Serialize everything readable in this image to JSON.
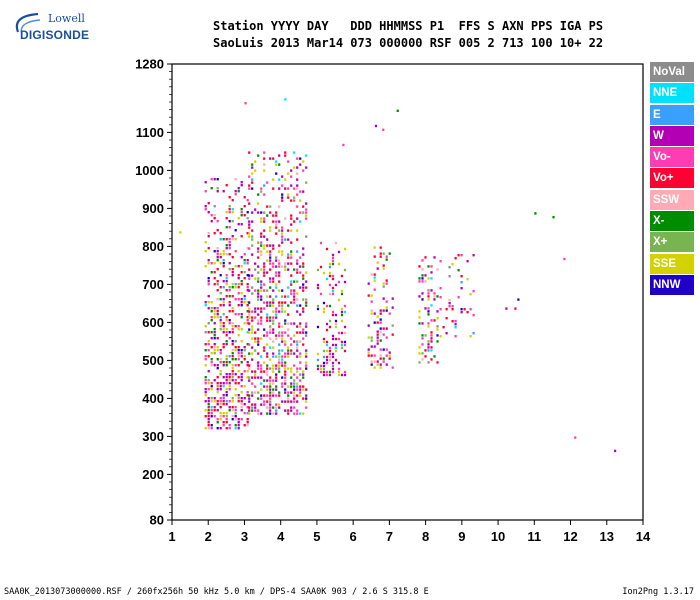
{
  "header": {
    "line1": "Station YYYY DAY   DDD HHMMSS P1  FFS S AXN PPS IGA PS",
    "line2": "SaoLuis 2013 Mar14 073 000000 RSF 005 2 713 100 10+ 22"
  },
  "logo": {
    "line1": "Lowell",
    "line2": "DIGISONDE"
  },
  "legend": [
    {
      "label": "NoVal",
      "color": "#8c8c8c",
      "text": "#ffffff"
    },
    {
      "label": "NNE",
      "color": "#00e1ff",
      "text": "#ffffff"
    },
    {
      "label": "E",
      "color": "#3aa0ff",
      "text": "#ffffff"
    },
    {
      "label": "W",
      "color": "#b400b4",
      "text": "#ffffff"
    },
    {
      "label": "Vo-",
      "color": "#ff3cb4",
      "text": "#ffffff"
    },
    {
      "label": "Vo+",
      "color": "#ff0032",
      "text": "#ffffff"
    },
    {
      "label": "SSW",
      "color": "#ffaab4",
      "text": "#ffffff"
    },
    {
      "label": "X-",
      "color": "#008c00",
      "text": "#ffffff"
    },
    {
      "label": "X+",
      "color": "#78b450",
      "text": "#ffffff"
    },
    {
      "label": "SSE",
      "color": "#d2d200",
      "text": "#ffffff"
    },
    {
      "label": "NNW",
      "color": "#1e00c8",
      "text": "#ffffff"
    }
  ],
  "footer": {
    "left": "SAA0K_2013073000000.RSF / 260fx256h 50 kHz 5.0 km / DPS-4 SAA0K 903 / 2.6 S 315.8 E",
    "right": "Ion2Png 1.3.17"
  },
  "chart_data": {
    "type": "scatter",
    "title": "",
    "xlabel": "",
    "ylabel": "",
    "xlim": [
      1,
      14
    ],
    "ylim": [
      80,
      1280
    ],
    "xticks": [
      1,
      2,
      3,
      4,
      5,
      6,
      7,
      8,
      9,
      10,
      11,
      12,
      13,
      14
    ],
    "yticks": [
      80,
      200,
      300,
      400,
      500,
      600,
      700,
      800,
      900,
      1000,
      1100,
      1280
    ],
    "clusters": [
      {
        "x": [
          1.9,
          3.1
        ],
        "y": [
          320,
          980
        ],
        "density": 0.55
      },
      {
        "x": [
          3.1,
          4.7
        ],
        "y": [
          360,
          1050
        ],
        "density": 0.55
      },
      {
        "x": [
          5.0,
          5.8
        ],
        "y": [
          460,
          820
        ],
        "density": 0.35
      },
      {
        "x": [
          6.4,
          7.1
        ],
        "y": [
          480,
          800
        ],
        "density": 0.35
      },
      {
        "x": [
          7.8,
          8.3
        ],
        "y": [
          490,
          790
        ],
        "density": 0.4
      },
      {
        "x": [
          8.3,
          9.3
        ],
        "y": [
          560,
          780
        ],
        "density": 0.15
      },
      {
        "x": [
          10.2,
          10.6
        ],
        "y": [
          630,
          750
        ],
        "density": 0.06
      }
    ],
    "isolated_points": [
      {
        "x": 6.6,
        "y": 1120
      },
      {
        "x": 6.8,
        "y": 1110
      },
      {
        "x": 7.2,
        "y": 1160
      },
      {
        "x": 4.1,
        "y": 1190
      },
      {
        "x": 5.7,
        "y": 1070
      },
      {
        "x": 11.0,
        "y": 890
      },
      {
        "x": 11.5,
        "y": 880
      },
      {
        "x": 11.8,
        "y": 770
      },
      {
        "x": 12.1,
        "y": 300
      },
      {
        "x": 13.2,
        "y": 265
      },
      {
        "x": 1.2,
        "y": 840
      },
      {
        "x": 3.0,
        "y": 1180
      }
    ],
    "grid": false
  }
}
